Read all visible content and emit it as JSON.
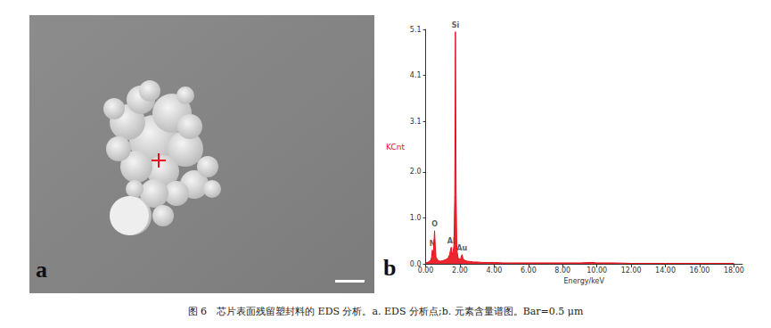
{
  "figure": {
    "caption": "图 6　芯片表面残留塑封料的 EDS 分析。a. EDS 分析点;b. 元素含量谱图。Bar=0.5 μm",
    "panels": [
      "a",
      "b"
    ]
  },
  "chart_data": {
    "type": "line",
    "x_label": "Energy/keV",
    "y_label": "KCnt",
    "color": "#e8101a",
    "x": [
      0.0,
      0.1,
      0.2,
      0.3,
      0.35,
      0.39,
      0.43,
      0.47,
      0.52,
      0.56,
      0.6,
      0.7,
      0.8,
      0.9,
      1.0,
      1.1,
      1.2,
      1.3,
      1.4,
      1.45,
      1.49,
      1.53,
      1.58,
      1.65,
      1.7,
      1.74,
      1.78,
      1.82,
      1.9,
      2.0,
      2.05,
      2.12,
      2.18,
      2.25,
      2.4,
      2.6,
      2.8,
      3.0,
      3.3,
      3.7,
      4.0,
      4.5,
      5.0,
      6.0,
      7.0,
      8.0,
      9.0,
      9.7,
      10.0,
      11.0,
      12.0,
      14.0,
      16.0,
      18.0
    ],
    "values": [
      0.02,
      0.03,
      0.05,
      0.08,
      0.15,
      0.3,
      0.2,
      0.35,
      0.72,
      0.4,
      0.15,
      0.08,
      0.06,
      0.06,
      0.07,
      0.08,
      0.1,
      0.12,
      0.2,
      0.3,
      0.36,
      0.25,
      0.2,
      0.4,
      1.5,
      5.05,
      1.5,
      0.3,
      0.12,
      0.1,
      0.12,
      0.2,
      0.12,
      0.08,
      0.06,
      0.05,
      0.04,
      0.04,
      0.03,
      0.03,
      0.03,
      0.02,
      0.02,
      0.02,
      0.02,
      0.02,
      0.02,
      0.03,
      0.02,
      0.02,
      0.01,
      0.01,
      0.01,
      0.01
    ],
    "xlim": [
      0,
      18.5
    ],
    "xticks": [
      {
        "value": 0,
        "label": "0.00"
      },
      {
        "value": 2,
        "label": "2.00"
      },
      {
        "value": 4,
        "label": "4.00"
      },
      {
        "value": 6,
        "label": "6.00"
      },
      {
        "value": 8,
        "label": "8.00"
      },
      {
        "value": 10,
        "label": "10.00"
      },
      {
        "value": 12,
        "label": "12.00"
      },
      {
        "value": 14,
        "label": "14.00"
      },
      {
        "value": 16,
        "label": "16.00"
      },
      {
        "value": 18,
        "label": "18.00"
      }
    ],
    "ylim": [
      0,
      5.1
    ],
    "yticks": [
      {
        "value": 0,
        "label": "0.0"
      },
      {
        "value": 1,
        "label": "1.0"
      },
      {
        "value": 2,
        "label": "2.0"
      },
      3.1,
      4.1,
      5.1
    ],
    "annotations": [
      {
        "text": "Si",
        "x": 1.74,
        "y": 5.05
      },
      {
        "text": "O",
        "x": 0.52,
        "y": 0.72
      },
      {
        "text": "N",
        "x": 0.39,
        "y": 0.3
      },
      {
        "text": "Al",
        "x": 1.49,
        "y": 0.36
      },
      {
        "text": "Au",
        "x": 2.12,
        "y": 0.2
      }
    ],
    "grid": false
  }
}
